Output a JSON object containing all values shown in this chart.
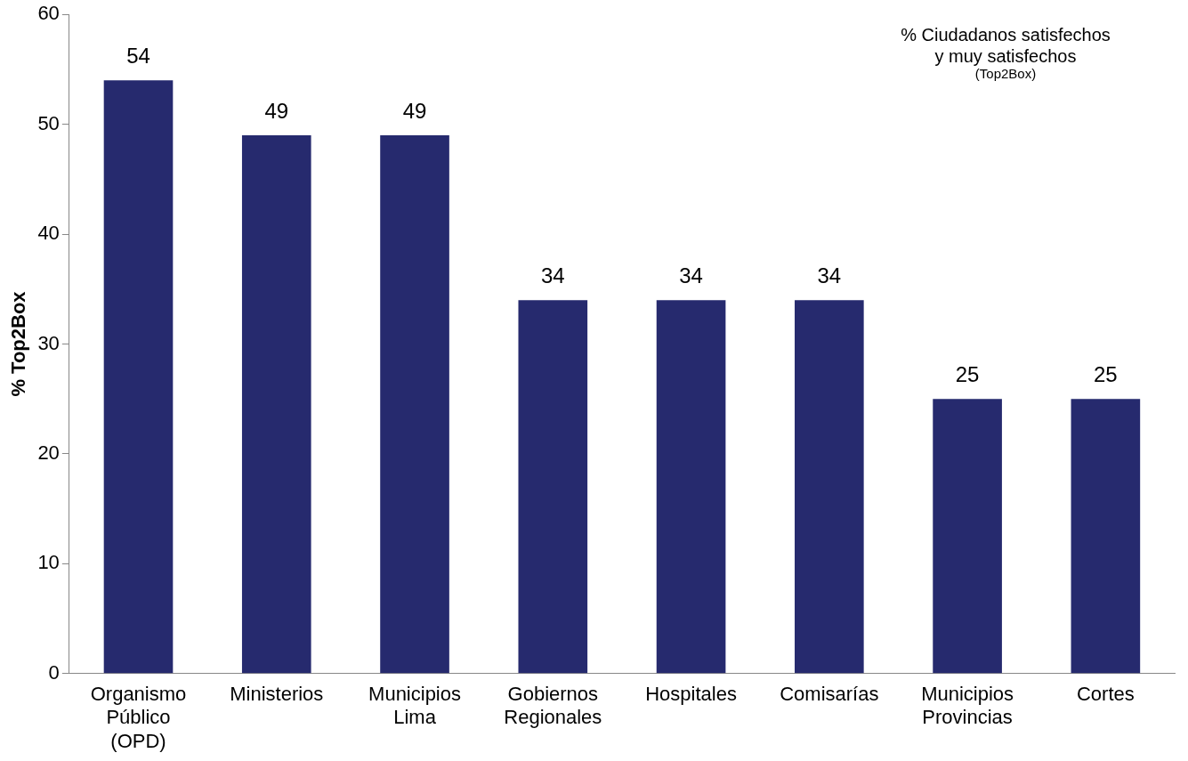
{
  "chart_data": {
    "type": "bar",
    "ylabel": "% Top2Box",
    "categories": [
      "Organismo Público (OPD)",
      "Ministerios",
      "Municipios Lima",
      "Gobiernos Regionales",
      "Hospitales",
      "Comisarías",
      "Municipios Provincias",
      "Cortes"
    ],
    "values": [
      54,
      49,
      49,
      34,
      34,
      34,
      25,
      25
    ],
    "color": "#262a6e",
    "ylim": [
      0,
      60
    ],
    "yticks": [
      0,
      10,
      20,
      30,
      40,
      50,
      60
    ],
    "grid": false,
    "data_labels": true,
    "annotations": [
      "% Ciudadanos satisfechos\ny muy satisfechos",
      "(Top2Box)"
    ]
  }
}
